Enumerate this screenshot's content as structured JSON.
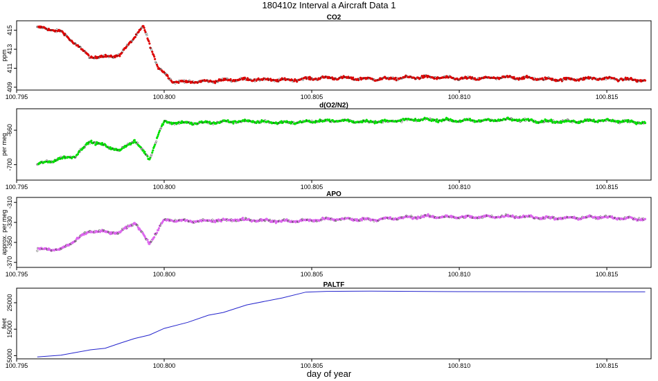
{
  "figure": {
    "title": "180410z   Interval a Aircraft Data 1",
    "xlabel": "day of year"
  },
  "chart_data": [
    {
      "type": "scatter",
      "title": "CO2",
      "ylabel": "ppm",
      "xlim": [
        100.795,
        100.8165
      ],
      "ylim": [
        408.7,
        416.0
      ],
      "xticks": [
        100.795,
        100.8,
        100.805,
        100.81,
        100.815
      ],
      "xtick_labels": [
        "100.795",
        "100.800",
        "100.805",
        "100.810",
        "100.815"
      ],
      "yticks": [
        409,
        411,
        413,
        415
      ],
      "ytick_labels": [
        "409",
        "411",
        "413",
        "415"
      ],
      "color": "#dd0000",
      "x_range": [
        100.7957,
        100.8163
      ],
      "profile": [
        [
          100.7957,
          415.3
        ],
        [
          100.7965,
          414.8
        ],
        [
          100.7975,
          412.2
        ],
        [
          100.7985,
          412.4
        ],
        [
          100.799,
          414.3
        ],
        [
          100.7993,
          415.3
        ],
        [
          100.7995,
          413.5
        ],
        [
          100.7998,
          411.0
        ],
        [
          100.8003,
          409.6
        ],
        [
          100.802,
          409.7
        ],
        [
          100.805,
          409.9
        ],
        [
          100.81,
          410.0
        ],
        [
          100.8163,
          409.8
        ]
      ]
    },
    {
      "type": "scatter",
      "title": "d(O2/N2)",
      "ylabel": "per meg",
      "xlim": [
        100.795,
        100.8165
      ],
      "ylim": [
        -718,
        -635
      ],
      "xticks": [
        100.795,
        100.8,
        100.805,
        100.81,
        100.815
      ],
      "xtick_labels": [
        "100.795",
        "100.800",
        "100.805",
        "100.810",
        "100.815"
      ],
      "yticks": [
        -700,
        -660
      ],
      "ytick_labels": [
        "-700",
        "-660"
      ],
      "color": "#00e000",
      "x_range": [
        100.7957,
        100.8163
      ],
      "profile": [
        [
          100.7957,
          -700
        ],
        [
          100.797,
          -690
        ],
        [
          100.7975,
          -672
        ],
        [
          100.7985,
          -683
        ],
        [
          100.799,
          -672
        ],
        [
          100.7995,
          -695
        ],
        [
          100.7998,
          -665
        ],
        [
          100.8,
          -651
        ],
        [
          100.805,
          -650
        ],
        [
          100.81,
          -648
        ],
        [
          100.8163,
          -650
        ]
      ]
    },
    {
      "type": "scatter",
      "title": "APO",
      "ylabel": "approx. per meg",
      "xlim": [
        100.795,
        100.8165
      ],
      "ylim": [
        -375,
        -305
      ],
      "xticks": [
        100.795,
        100.8,
        100.805,
        100.81,
        100.815
      ],
      "xtick_labels": [
        "100.795",
        "100.800",
        "100.805",
        "100.810",
        "100.815"
      ],
      "yticks": [
        -370,
        -350,
        -330,
        -310
      ],
      "ytick_labels": [
        "-370",
        "-350",
        "-330",
        "-310"
      ],
      "color": "#dd66ee",
      "x_range": [
        100.7957,
        100.8163
      ],
      "profile": [
        [
          100.7957,
          -357
        ],
        [
          100.7965,
          -358
        ],
        [
          100.7975,
          -338
        ],
        [
          100.7985,
          -340
        ],
        [
          100.799,
          -330
        ],
        [
          100.7995,
          -352
        ],
        [
          100.8,
          -328
        ],
        [
          100.805,
          -328
        ],
        [
          100.81,
          -324
        ],
        [
          100.8163,
          -326
        ]
      ]
    },
    {
      "type": "line",
      "title": "PALTF",
      "ylabel": "feet",
      "xlim": [
        100.795,
        100.8165
      ],
      "ylim": [
        3800,
        30500
      ],
      "xticks": [
        100.795,
        100.8,
        100.805,
        100.81,
        100.815
      ],
      "xtick_labels": [
        "100.795",
        "100.800",
        "100.805",
        "100.810",
        "100.815"
      ],
      "yticks": [
        5000,
        15000,
        25000
      ],
      "ytick_labels": [
        "5000",
        "15000",
        "25000"
      ],
      "color": "#2222cc",
      "x": [
        100.7957,
        100.7965,
        100.7975,
        100.798,
        100.7985,
        100.799,
        100.7995,
        100.8,
        100.8008,
        100.8015,
        100.802,
        100.8028,
        100.804,
        100.8048,
        100.8055,
        100.807,
        100.81,
        100.8163
      ],
      "y": [
        4500,
        5200,
        7200,
        7800,
        9700,
        11500,
        12800,
        15300,
        17600,
        20300,
        21300,
        24200,
        26800,
        29000,
        29300,
        29400,
        29200,
        29100
      ]
    }
  ]
}
